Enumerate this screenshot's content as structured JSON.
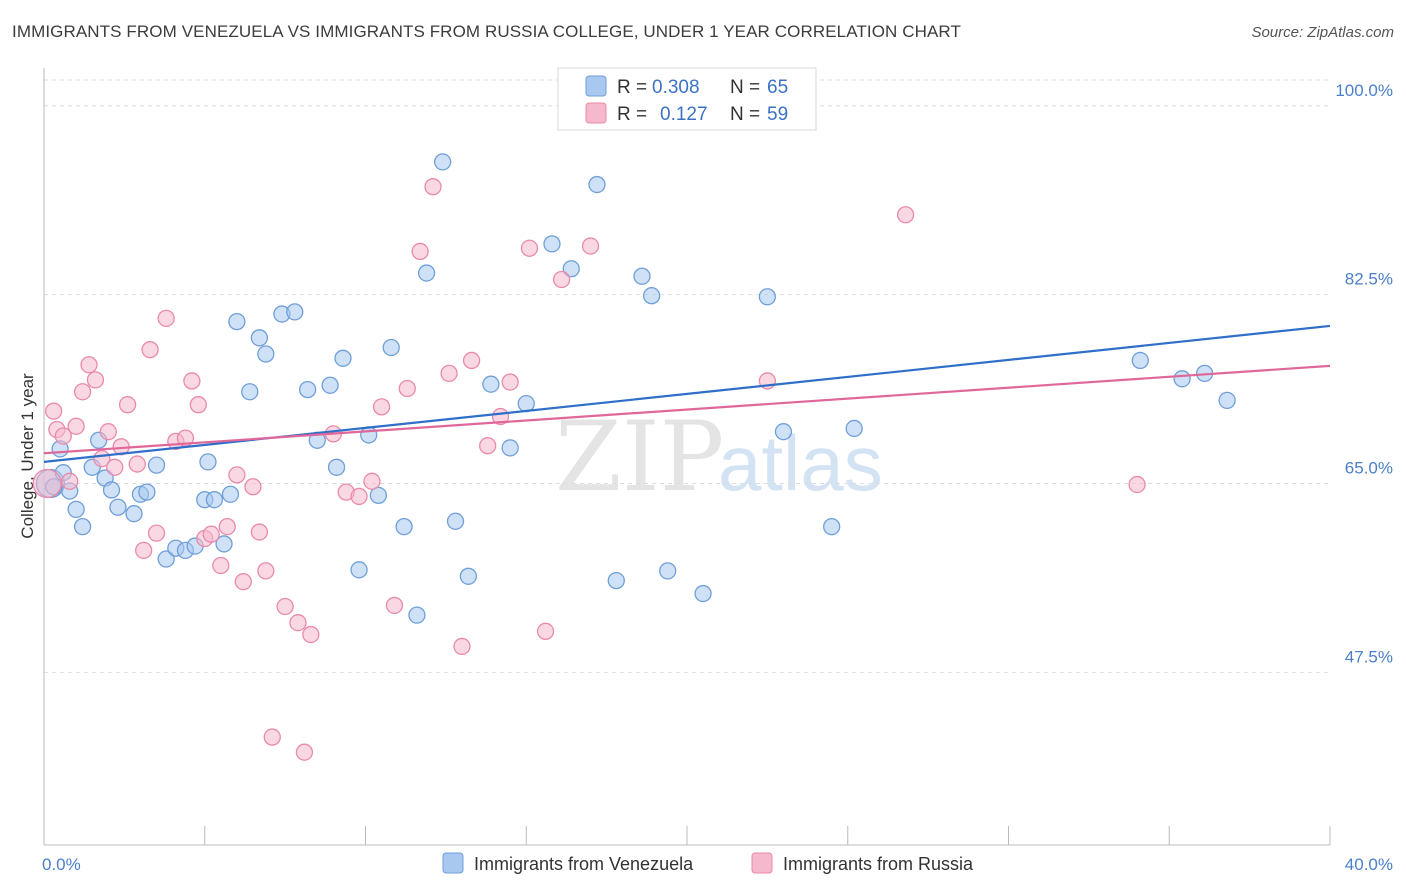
{
  "header": {
    "title": "IMMIGRANTS FROM VENEZUELA VS IMMIGRANTS FROM RUSSIA COLLEGE, UNDER 1 YEAR CORRELATION CHART",
    "source": "Source: ZipAtlas.com"
  },
  "watermark": {
    "zip": "ZIP",
    "atlas": "atlas"
  },
  "legend": {
    "venezuela": {
      "r_label": "R =",
      "r_value": "0.308",
      "n_label": "N =",
      "n_value": "65"
    },
    "russia": {
      "r_label": "R =",
      "r_value": "0.127",
      "n_label": "N =",
      "n_value": "59"
    }
  },
  "colors": {
    "venezuela_fill": "#a8c8f0",
    "venezuela_stroke": "#6f9fd8",
    "venezuela_line": "#2f6fc9",
    "russia_fill": "#f5b8cc",
    "russia_stroke": "#e98aaa",
    "russia_line": "#e0679a",
    "tick_text": "#4a7fc9",
    "grid": "#dddddd"
  },
  "chart_data": {
    "type": "scatter",
    "title": "IMMIGRANTS FROM VENEZUELA VS IMMIGRANTS FROM RUSSIA COLLEGE, UNDER 1 YEAR CORRELATION CHART",
    "xlabel": "",
    "ylabel": "College, Under 1 year",
    "xlim": [
      0,
      40
    ],
    "ylim": [
      31.5,
      103.5
    ],
    "x_tick_labels": [
      "0.0%",
      "40.0%"
    ],
    "y_ticks": [
      47.5,
      65.0,
      82.5,
      100.0
    ],
    "y_tick_labels": [
      "47.5%",
      "65.0%",
      "82.5%",
      "100.0%"
    ],
    "grid": "horizontal dashed",
    "legend_position": "top-center",
    "series": [
      {
        "name": "Immigrants from Venezuela",
        "R": 0.308,
        "N": 65,
        "trend": {
          "x": [
            0,
            40
          ],
          "y": [
            67.0,
            79.6
          ]
        },
        "points": [
          [
            0.2,
            65.0
          ],
          [
            0.3,
            64.7
          ],
          [
            0.5,
            68.2
          ],
          [
            0.6,
            66.0
          ],
          [
            0.8,
            64.3
          ],
          [
            1.0,
            62.6
          ],
          [
            1.2,
            61.0
          ],
          [
            1.5,
            66.5
          ],
          [
            1.7,
            69.0
          ],
          [
            1.9,
            65.5
          ],
          [
            2.1,
            64.4
          ],
          [
            2.3,
            62.8
          ],
          [
            2.8,
            62.2
          ],
          [
            3.0,
            64.0
          ],
          [
            3.2,
            64.2
          ],
          [
            3.5,
            66.7
          ],
          [
            3.8,
            58.0
          ],
          [
            4.1,
            59.0
          ],
          [
            4.4,
            58.8
          ],
          [
            4.7,
            59.2
          ],
          [
            5.0,
            63.5
          ],
          [
            5.1,
            67.0
          ],
          [
            5.3,
            63.5
          ],
          [
            5.6,
            59.4
          ],
          [
            5.8,
            64.0
          ],
          [
            6.0,
            80.0
          ],
          [
            6.4,
            73.5
          ],
          [
            6.7,
            78.5
          ],
          [
            6.9,
            77.0
          ],
          [
            7.4,
            80.7
          ],
          [
            7.8,
            80.9
          ],
          [
            8.2,
            73.7
          ],
          [
            8.5,
            69.0
          ],
          [
            8.9,
            74.1
          ],
          [
            9.1,
            66.5
          ],
          [
            9.3,
            76.6
          ],
          [
            9.8,
            57.0
          ],
          [
            10.1,
            69.5
          ],
          [
            10.4,
            63.9
          ],
          [
            10.8,
            77.6
          ],
          [
            11.2,
            61.0
          ],
          [
            11.6,
            52.8
          ],
          [
            11.9,
            84.5
          ],
          [
            12.4,
            94.8
          ],
          [
            12.8,
            61.5
          ],
          [
            13.2,
            56.4
          ],
          [
            13.9,
            74.2
          ],
          [
            14.5,
            68.3
          ],
          [
            15.0,
            72.4
          ],
          [
            15.8,
            87.2
          ],
          [
            16.4,
            84.9
          ],
          [
            17.2,
            92.7
          ],
          [
            17.8,
            56.0
          ],
          [
            18.6,
            84.2
          ],
          [
            18.9,
            82.4
          ],
          [
            19.4,
            56.9
          ],
          [
            20.5,
            54.8
          ],
          [
            22.5,
            82.3
          ],
          [
            23.0,
            69.8
          ],
          [
            24.5,
            61.0
          ],
          [
            34.1,
            76.4
          ],
          [
            35.4,
            74.7
          ],
          [
            36.8,
            72.7
          ],
          [
            36.1,
            75.2
          ],
          [
            25.2,
            70.1
          ]
        ]
      },
      {
        "name": "Immigrants from Russia",
        "R": 0.127,
        "N": 59,
        "trend": {
          "x": [
            0,
            40
          ],
          "y": [
            67.8,
            75.9
          ]
        },
        "points": [
          [
            0.1,
            65.0
          ],
          [
            0.3,
            71.7
          ],
          [
            0.4,
            70.0
          ],
          [
            0.6,
            69.4
          ],
          [
            0.8,
            65.2
          ],
          [
            1.0,
            70.3
          ],
          [
            1.2,
            73.5
          ],
          [
            1.4,
            76.0
          ],
          [
            1.6,
            74.6
          ],
          [
            1.8,
            67.3
          ],
          [
            2.0,
            69.8
          ],
          [
            2.2,
            66.5
          ],
          [
            2.4,
            68.4
          ],
          [
            2.6,
            72.3
          ],
          [
            2.9,
            66.8
          ],
          [
            3.1,
            58.8
          ],
          [
            3.3,
            77.4
          ],
          [
            3.5,
            60.4
          ],
          [
            3.8,
            80.3
          ],
          [
            4.1,
            68.9
          ],
          [
            4.4,
            69.2
          ],
          [
            4.6,
            74.5
          ],
          [
            4.8,
            72.3
          ],
          [
            5.0,
            59.9
          ],
          [
            5.2,
            60.3
          ],
          [
            5.5,
            57.4
          ],
          [
            5.7,
            61.0
          ],
          [
            6.0,
            65.8
          ],
          [
            6.2,
            55.9
          ],
          [
            6.5,
            64.7
          ],
          [
            6.7,
            60.5
          ],
          [
            6.9,
            56.9
          ],
          [
            7.1,
            41.5
          ],
          [
            7.5,
            53.6
          ],
          [
            7.9,
            52.1
          ],
          [
            8.1,
            40.1
          ],
          [
            8.3,
            51.0
          ],
          [
            9.0,
            69.6
          ],
          [
            9.4,
            64.2
          ],
          [
            9.8,
            63.8
          ],
          [
            10.2,
            65.2
          ],
          [
            10.5,
            72.1
          ],
          [
            10.9,
            53.7
          ],
          [
            11.3,
            73.8
          ],
          [
            11.7,
            86.5
          ],
          [
            12.1,
            92.5
          ],
          [
            12.6,
            75.2
          ],
          [
            13.0,
            49.9
          ],
          [
            13.3,
            76.4
          ],
          [
            13.8,
            68.5
          ],
          [
            14.2,
            71.2
          ],
          [
            14.5,
            74.4
          ],
          [
            15.1,
            86.8
          ],
          [
            15.6,
            51.3
          ],
          [
            16.1,
            83.9
          ],
          [
            17.0,
            87.0
          ],
          [
            22.5,
            74.5
          ],
          [
            26.8,
            89.9
          ],
          [
            34.0,
            64.9
          ]
        ]
      }
    ]
  },
  "bottom_legend": {
    "venezuela_label": "Immigrants from Venezuela",
    "russia_label": "Immigrants from Russia"
  }
}
